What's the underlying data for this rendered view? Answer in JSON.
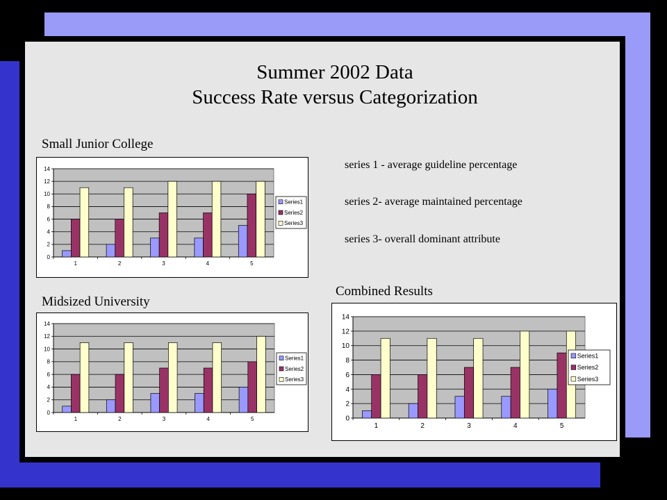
{
  "slide": {
    "title_line1": "Summer 2002 Data",
    "title_line2": "Success Rate versus Categorization",
    "descriptions": [
      "series 1 - average guideline percentage",
      "series 2- average maintained percentage",
      "series 3- overall dominant attribute"
    ]
  },
  "colors": {
    "series1": "#9999ff",
    "series2": "#993366",
    "series3": "#ffffcc",
    "plot_background": "#c0c0c0",
    "frame_light": "#9a9af8",
    "frame_dark": "#3434cc"
  },
  "chart_data": [
    {
      "type": "bar",
      "title": "Small Junior College",
      "categories": [
        "1",
        "2",
        "3",
        "4",
        "5"
      ],
      "series": [
        {
          "name": "Series1",
          "values": [
            1,
            2,
            3,
            3,
            5
          ]
        },
        {
          "name": "Series2",
          "values": [
            6,
            6,
            7,
            7,
            10
          ]
        },
        {
          "name": "Series3",
          "values": [
            11,
            11,
            12,
            12,
            12
          ]
        }
      ],
      "yticks": [
        "0",
        "2",
        "4",
        "6",
        "8",
        "10",
        "12",
        "14"
      ],
      "ylim": [
        0,
        14
      ],
      "grid": true,
      "legend": "right"
    },
    {
      "type": "bar",
      "title": "Midsized University",
      "categories": [
        "1",
        "2",
        "3",
        "4",
        "5"
      ],
      "series": [
        {
          "name": "Series1",
          "values": [
            1,
            2,
            3,
            3,
            4
          ]
        },
        {
          "name": "Series2",
          "values": [
            6,
            6,
            7,
            7,
            8
          ]
        },
        {
          "name": "Series3",
          "values": [
            11,
            11,
            11,
            11,
            12
          ]
        }
      ],
      "yticks": [
        "0",
        "2",
        "4",
        "6",
        "8",
        "10",
        "12",
        "14"
      ],
      "ylim": [
        0,
        14
      ],
      "grid": true,
      "legend": "right"
    },
    {
      "type": "bar",
      "title": "Combined Results",
      "categories": [
        "1",
        "2",
        "3",
        "4",
        "5"
      ],
      "series": [
        {
          "name": "Series1",
          "values": [
            1,
            2,
            3,
            3,
            4
          ]
        },
        {
          "name": "Series2",
          "values": [
            6,
            6,
            7,
            7,
            9
          ]
        },
        {
          "name": "Series3",
          "values": [
            11,
            11,
            11,
            12,
            12
          ]
        }
      ],
      "yticks": [
        "0",
        "2",
        "4",
        "6",
        "8",
        "10",
        "12",
        "14"
      ],
      "ylim": [
        0,
        14
      ],
      "grid": true,
      "legend": "right"
    }
  ]
}
